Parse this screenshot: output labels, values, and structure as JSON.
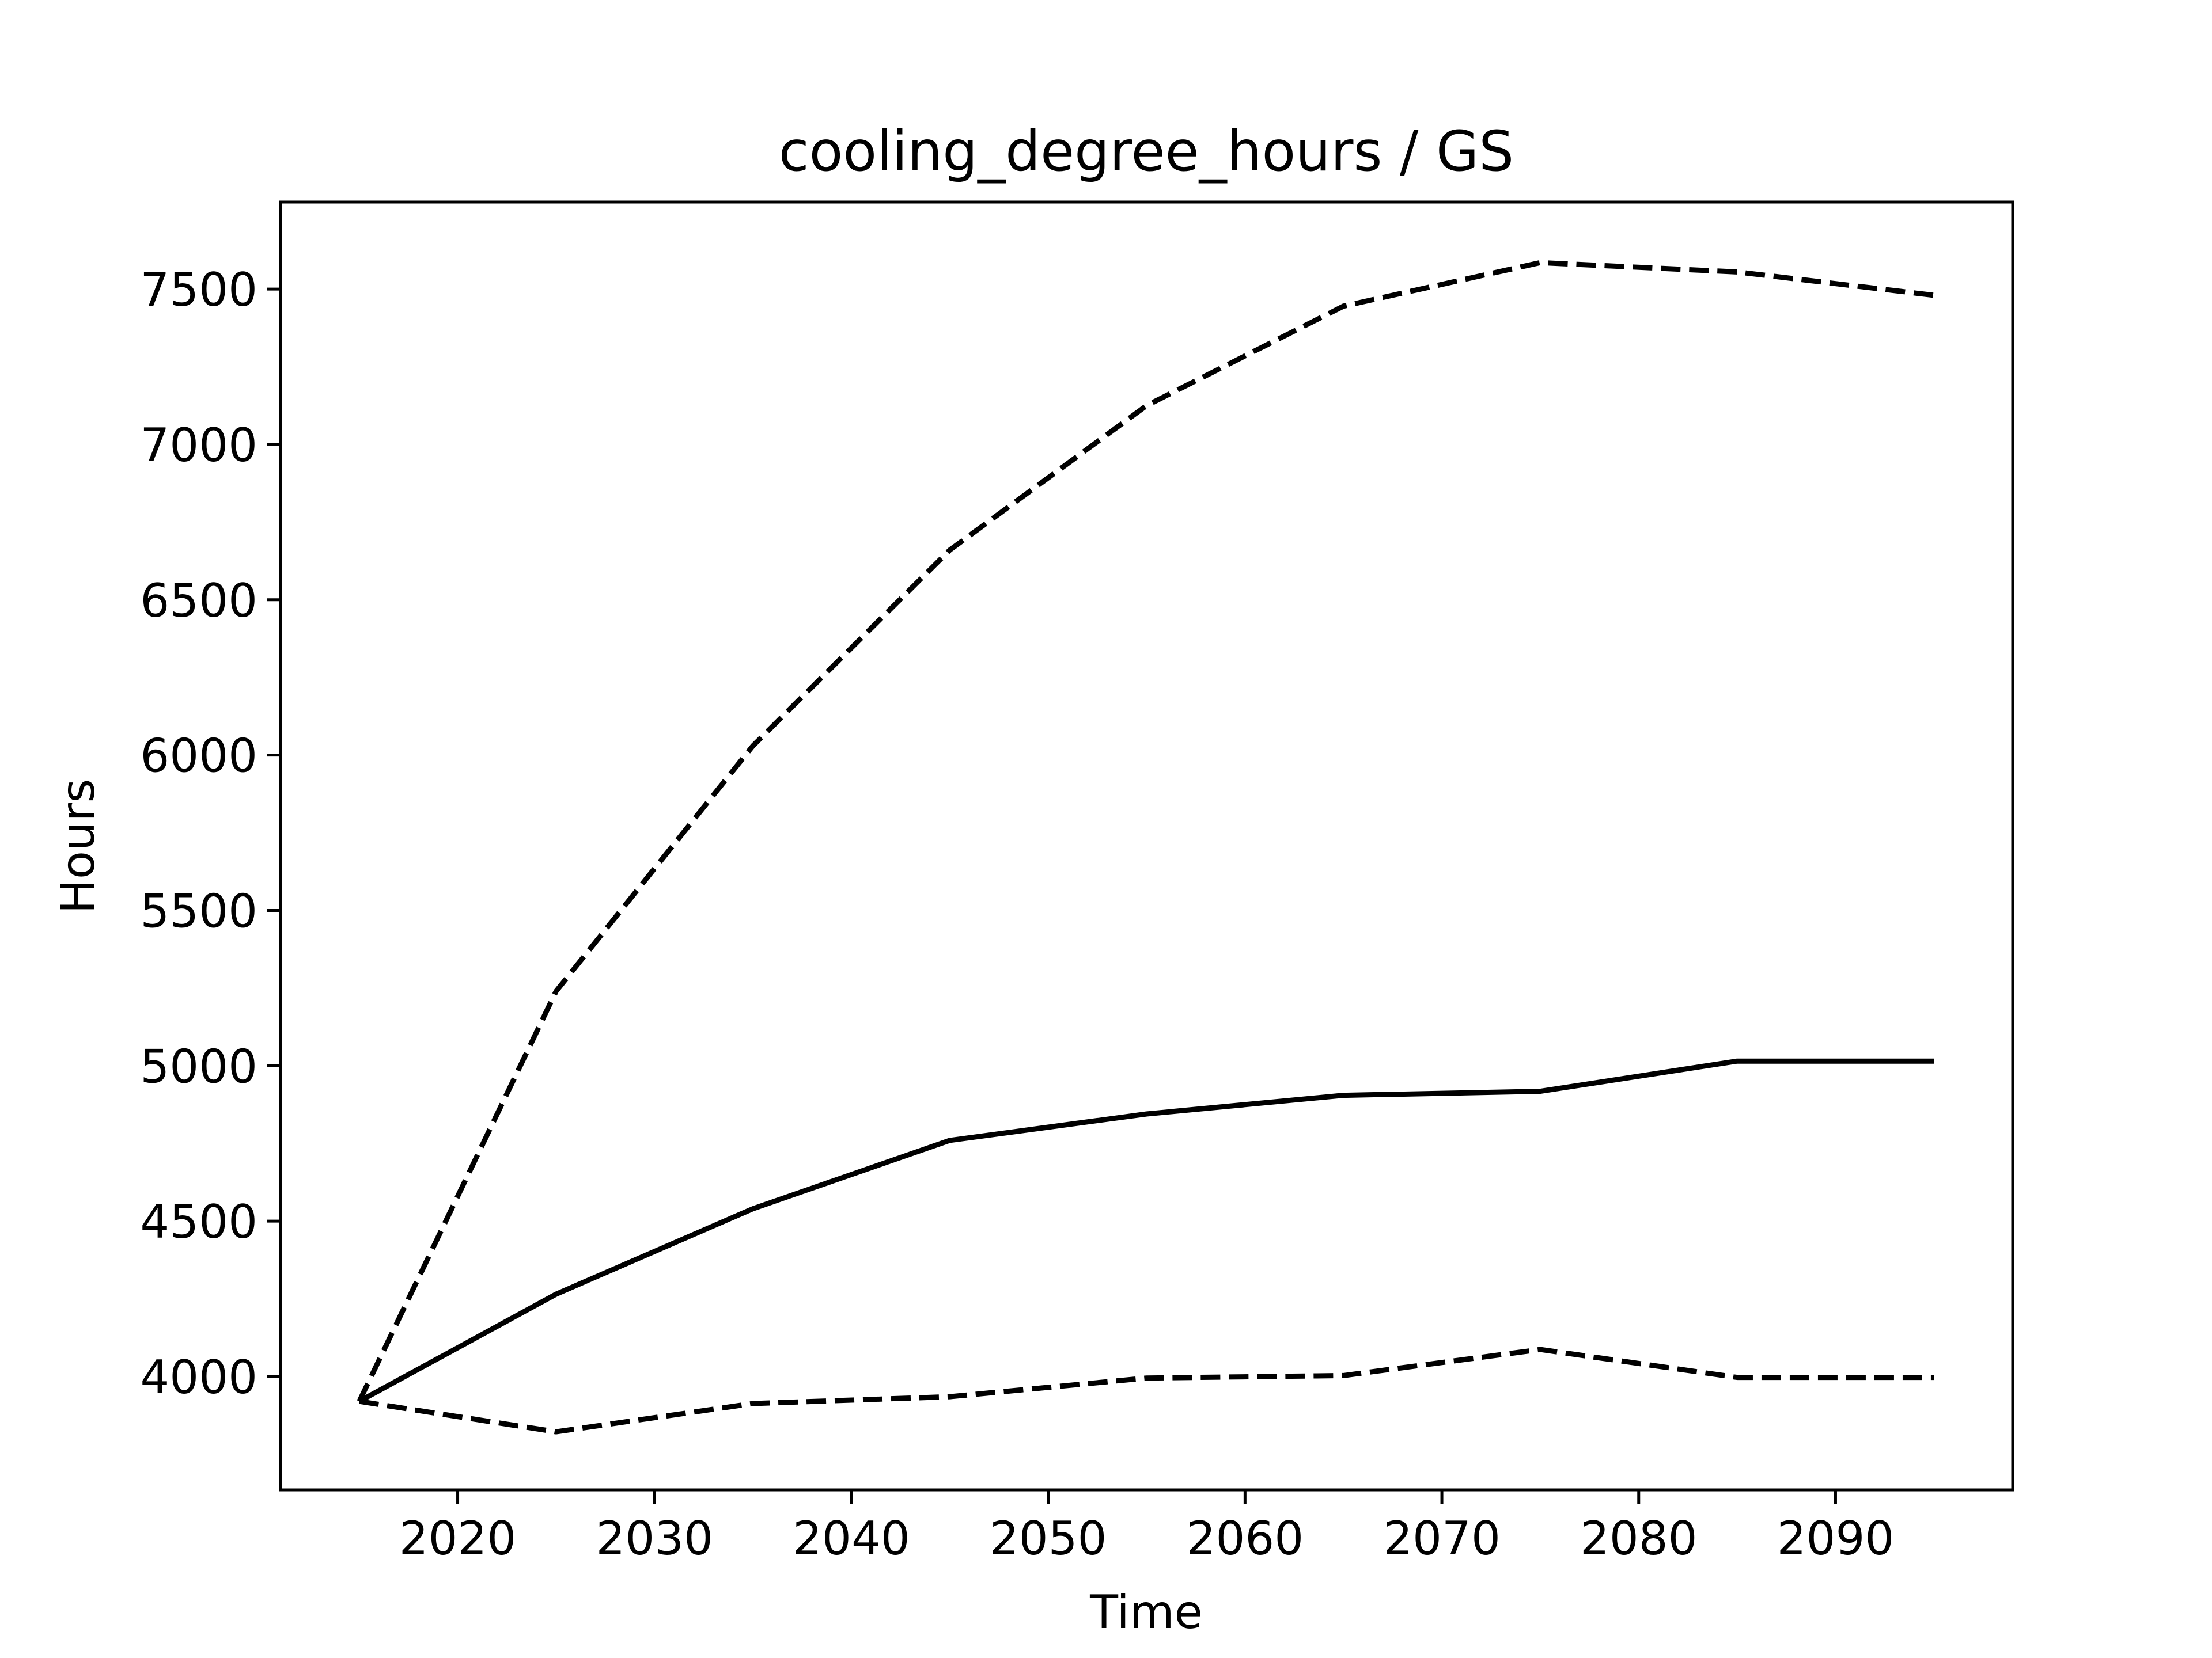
{
  "chart_data": {
    "type": "line",
    "title": "cooling_degree_hours / GS",
    "xlabel": "Time",
    "ylabel": "Hours",
    "xlim": [
      2011,
      2099
    ],
    "ylim": [
      3635,
      7780
    ],
    "xticks": [
      2020,
      2030,
      2040,
      2050,
      2060,
      2070,
      2080,
      2090
    ],
    "yticks": [
      4000,
      4500,
      5000,
      5500,
      6000,
      6500,
      7000,
      7500
    ],
    "grid": false,
    "legend": false,
    "x": [
      2015,
      2025,
      2035,
      2045,
      2055,
      2065,
      2075,
      2085,
      2095
    ],
    "series": [
      {
        "style": "solid",
        "color": "#000000",
        "values": [
          3920,
          4265,
          4540,
          4760,
          4845,
          4905,
          4918,
          5015,
          5015
        ]
      },
      {
        "style": "dashed",
        "color": "#000000",
        "values": [
          3920,
          5240,
          6030,
          6660,
          7125,
          7445,
          7585,
          7555,
          7480
        ]
      },
      {
        "style": "dashed",
        "color": "#000000",
        "values": [
          3920,
          3822,
          3913,
          3935,
          3995,
          4003,
          4087,
          3997,
          3997
        ]
      }
    ]
  }
}
